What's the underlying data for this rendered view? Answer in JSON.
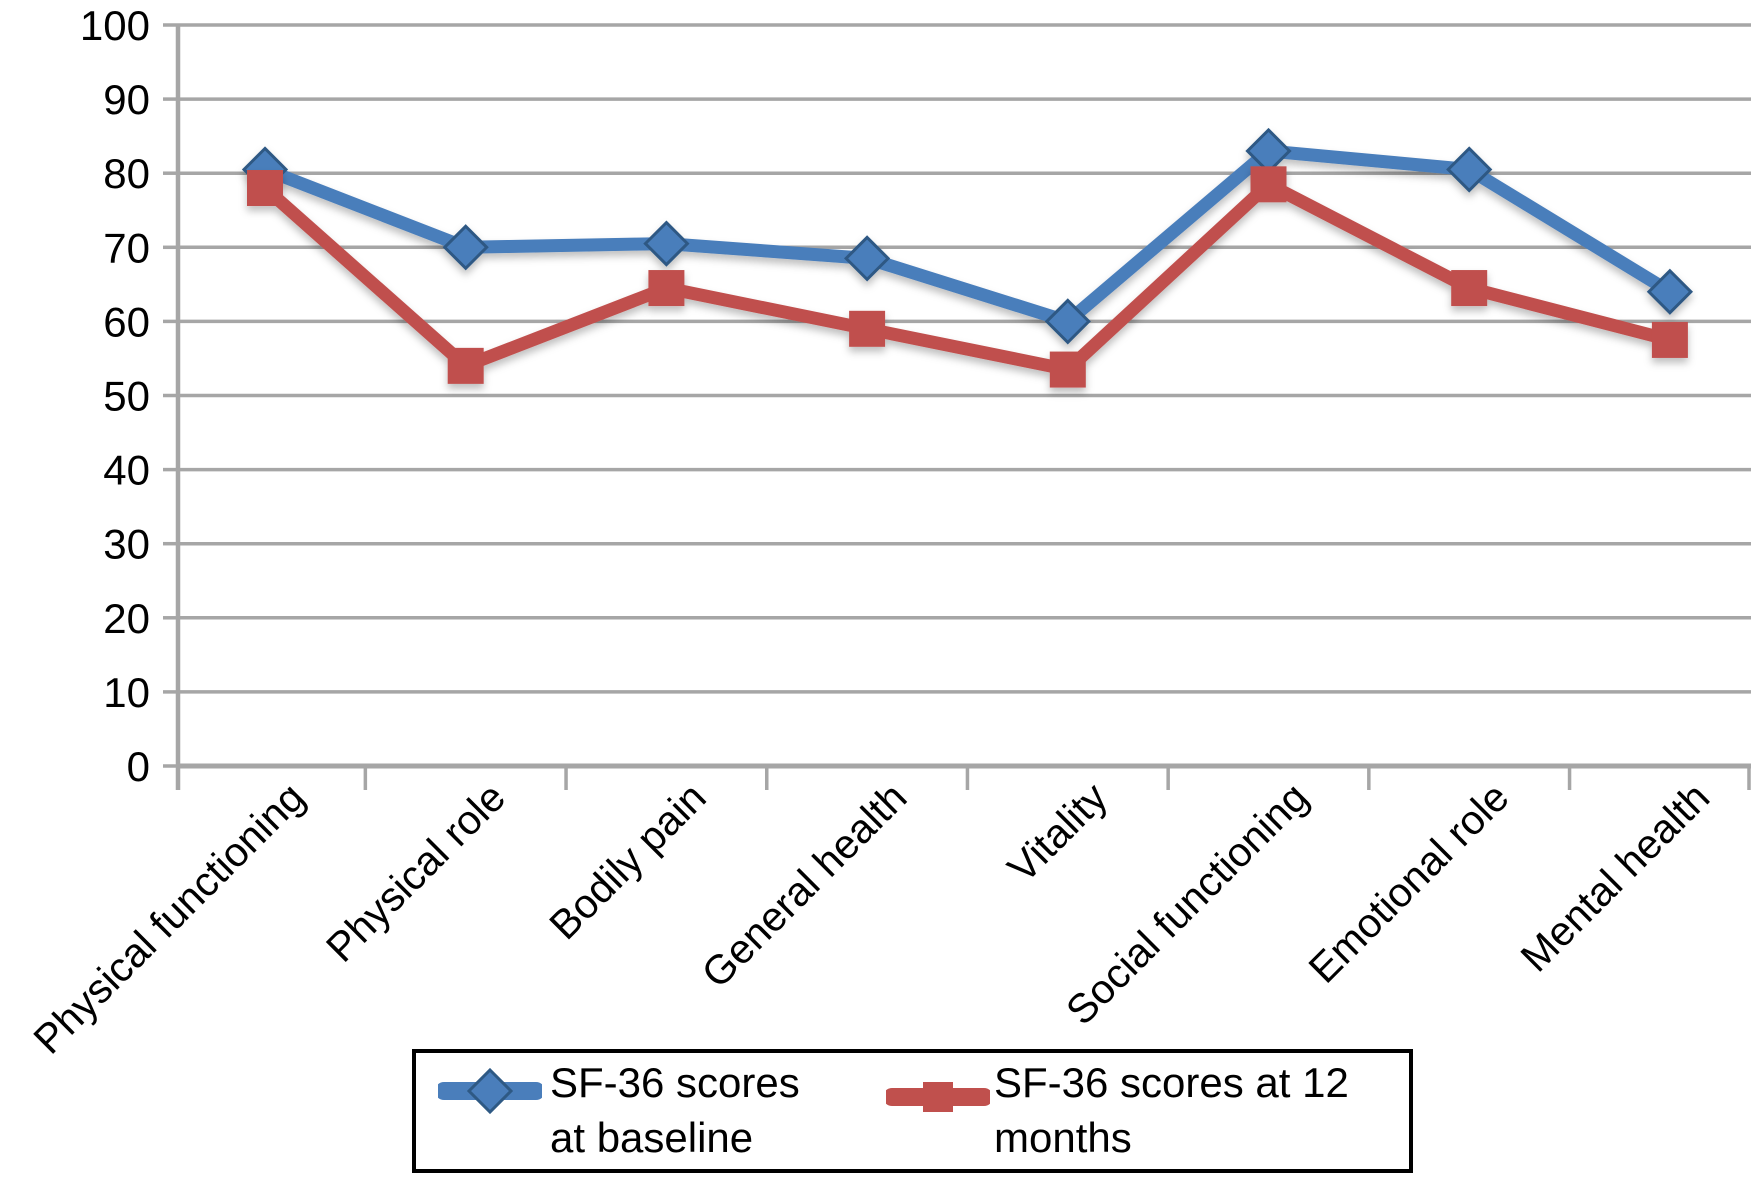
{
  "chart_data": {
    "type": "line",
    "title": "",
    "xlabel": "",
    "ylabel": "",
    "categories": [
      "Physical functioning",
      "Physical role",
      "Bodily pain",
      "General health",
      "Vitality",
      "Social functioning",
      "Emotional role",
      "Mental health"
    ],
    "series": [
      {
        "name": "SF-36 scores at baseline",
        "marker": "diamond",
        "color": "#4A7EBB",
        "marker_stroke": "#2E5984",
        "values": [
          80.5,
          70,
          70.5,
          68.5,
          60,
          83,
          80.5,
          64
        ]
      },
      {
        "name": "SF-36 scores at 12 months",
        "marker": "square",
        "color": "#C0504D",
        "marker_stroke": "#B0413E",
        "values": [
          78,
          54,
          64.5,
          59,
          53.5,
          78.5,
          64.5,
          57.5
        ]
      }
    ],
    "ylim": [
      0,
      100
    ],
    "yticks": [
      0,
      10,
      20,
      30,
      40,
      50,
      60,
      70,
      80,
      90,
      100
    ],
    "grid": "horizontal",
    "gridline_color": "#A6A6A6",
    "axis_color": "#A6A6A6",
    "tick_label_color": "#000000",
    "legend_position": "bottom",
    "legend_border_color": "#000000"
  }
}
